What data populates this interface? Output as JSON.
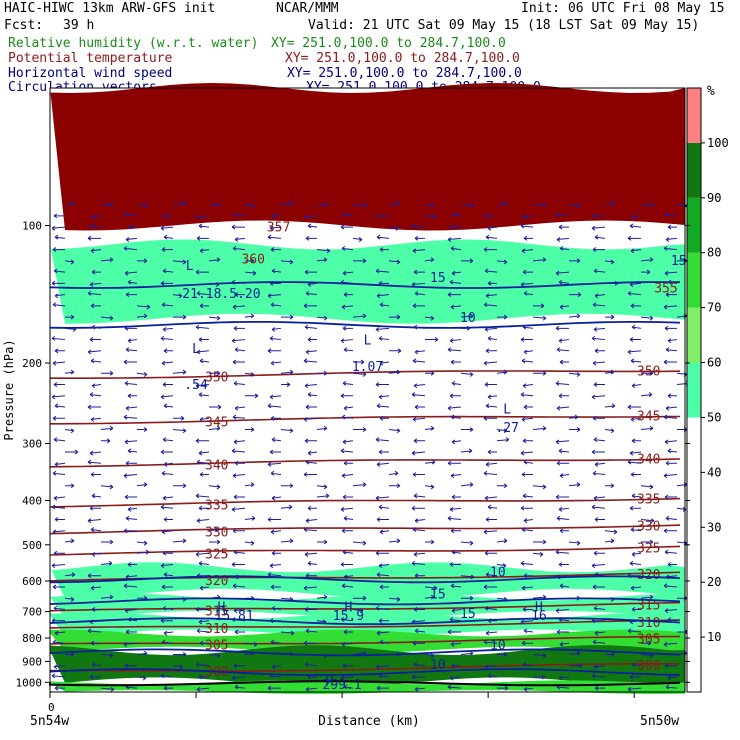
{
  "header": {
    "title_left": "HAIC-HIWC 13km ARW-GFS init",
    "title_center": "NCAR/MMM",
    "init_time": "Init: 06 UTC Fri 08 May 15",
    "forecast_label": "Fcst:",
    "forecast_value": "39 h",
    "valid_time": "Valid: 21 UTC Sat 09 May 15 (18 LST Sat 09 May 15)",
    "fields": [
      {
        "name": "Relative humidity (w.r.t. water)",
        "xy": "XY= 251.0,100.0 to 284.7,100.0",
        "color": "#1a8c1a"
      },
      {
        "name": "Potential temperature",
        "xy": "XY= 251.0,100.0 to 284.7,100.0",
        "color": "#8b1a1a"
      },
      {
        "name": "Horizontal wind speed",
        "xy": "XY= 251.0,100.0 to 284.7,100.0",
        "color": "#000080"
      },
      {
        "name": "Circulation vectors",
        "xy": "XY= 251.0,100.0 to 284.7,100.0",
        "color": "#000080"
      }
    ]
  },
  "chart_data": {
    "type": "heatmap",
    "xlabel": "Distance (km)",
    "ylabel": "Pressure (hPa)",
    "x_start_label": "5n54w",
    "x_end_label": "5n50w",
    "x_origin_tick": "0",
    "y_ticks": [
      100,
      200,
      300,
      400,
      500,
      600,
      700,
      800,
      900,
      1000
    ],
    "ylim": [
      1050,
      50
    ],
    "y_scale": "log",
    "colorbar": {
      "unit": "%",
      "levels": [
        0,
        10,
        20,
        30,
        40,
        50,
        60,
        70,
        80,
        90,
        100,
        110
      ],
      "tick_labels": [
        "10",
        "20",
        "30",
        "40",
        "50",
        "60",
        "70",
        "80",
        "90",
        "100"
      ],
      "colors": [
        "#ffffff",
        "#ffffff",
        "#ffffff",
        "#ffffff",
        "#ffffff",
        "#4dffa6",
        "#80ee66",
        "#33dd33",
        "#11aa22",
        "#117711",
        "#ff8080"
      ]
    },
    "rh_bands": [
      {
        "p_top": 50,
        "p_bottom": 100,
        "color": "#8b0000"
      },
      {
        "p_top": 110,
        "p_bottom": 160,
        "color": "#4dffa6"
      },
      {
        "p_top": 560,
        "p_bottom": 640,
        "color": "#4dffa6"
      },
      {
        "p_top": 650,
        "p_bottom": 710,
        "color": "#4dffa6"
      },
      {
        "p_top": 715,
        "p_bottom": 780,
        "color": "#4dffa6"
      },
      {
        "p_top": 780,
        "p_bottom": 850,
        "color": "#33dd33"
      },
      {
        "p_top": 850,
        "p_bottom": 1000,
        "color": "#117711"
      },
      {
        "p_top": 1000,
        "p_bottom": 1050,
        "color": "#33dd33"
      }
    ],
    "theta_isentropes": [
      {
        "value": "350",
        "p": 215
      },
      {
        "value": "345",
        "p": 270
      },
      {
        "value": "340",
        "p": 335
      },
      {
        "value": "335",
        "p": 410
      },
      {
        "value": "330",
        "p": 470
      },
      {
        "value": "325",
        "p": 525
      },
      {
        "value": "320",
        "p": 600
      },
      {
        "value": "315",
        "p": 700
      },
      {
        "value": "310",
        "p": 765
      },
      {
        "value": "305",
        "p": 830
      },
      {
        "value": "300",
        "p": 950
      }
    ],
    "wind_contours": [
      {
        "value": "15",
        "p": 135
      },
      {
        "value": "10",
        "p": 165
      },
      {
        "value": "10",
        "p": 595
      },
      {
        "value": "15",
        "p": 665
      },
      {
        "value": "15",
        "p": 735
      },
      {
        "value": "10",
        "p": 860
      },
      {
        "value": "10",
        "p": 950
      }
    ],
    "annotations": [
      {
        "text": "357",
        "p": 103,
        "x": 0.36
      },
      {
        "text": "360",
        "p": 121,
        "x": 0.32
      },
      {
        "text": "355",
        "p": 140,
        "x": 0.97
      },
      {
        "text": "15",
        "p": 122,
        "x": 0.99
      },
      {
        "text": "L",
        "p": 125,
        "x": 0.22
      },
      {
        "text": "21.18.5.20",
        "p": 144,
        "x": 0.27
      },
      {
        "text": "L",
        "p": 190,
        "x": 0.23
      },
      {
        "text": ".54",
        "p": 228,
        "x": 0.23
      },
      {
        "text": "L",
        "p": 182,
        "x": 0.5
      },
      {
        "text": "1.07",
        "p": 208,
        "x": 0.5
      },
      {
        "text": "L",
        "p": 258,
        "x": 0.72
      },
      {
        "text": ".27",
        "p": 283,
        "x": 0.72
      },
      {
        "text": "H",
        "p": 700,
        "x": 0.27
      },
      {
        "text": "15.81",
        "p": 730,
        "x": 0.29
      },
      {
        "text": "H",
        "p": 700,
        "x": 0.47
      },
      {
        "text": "15.9",
        "p": 730,
        "x": 0.47
      },
      {
        "text": "H",
        "p": 700,
        "x": 0.77
      },
      {
        "text": "16",
        "p": 730,
        "x": 0.77
      },
      {
        "text": "H",
        "p": 1015,
        "x": 0.44
      },
      {
        "text": "299.1",
        "p": 1035,
        "x": 0.46
      }
    ],
    "terrain": "bottom"
  }
}
